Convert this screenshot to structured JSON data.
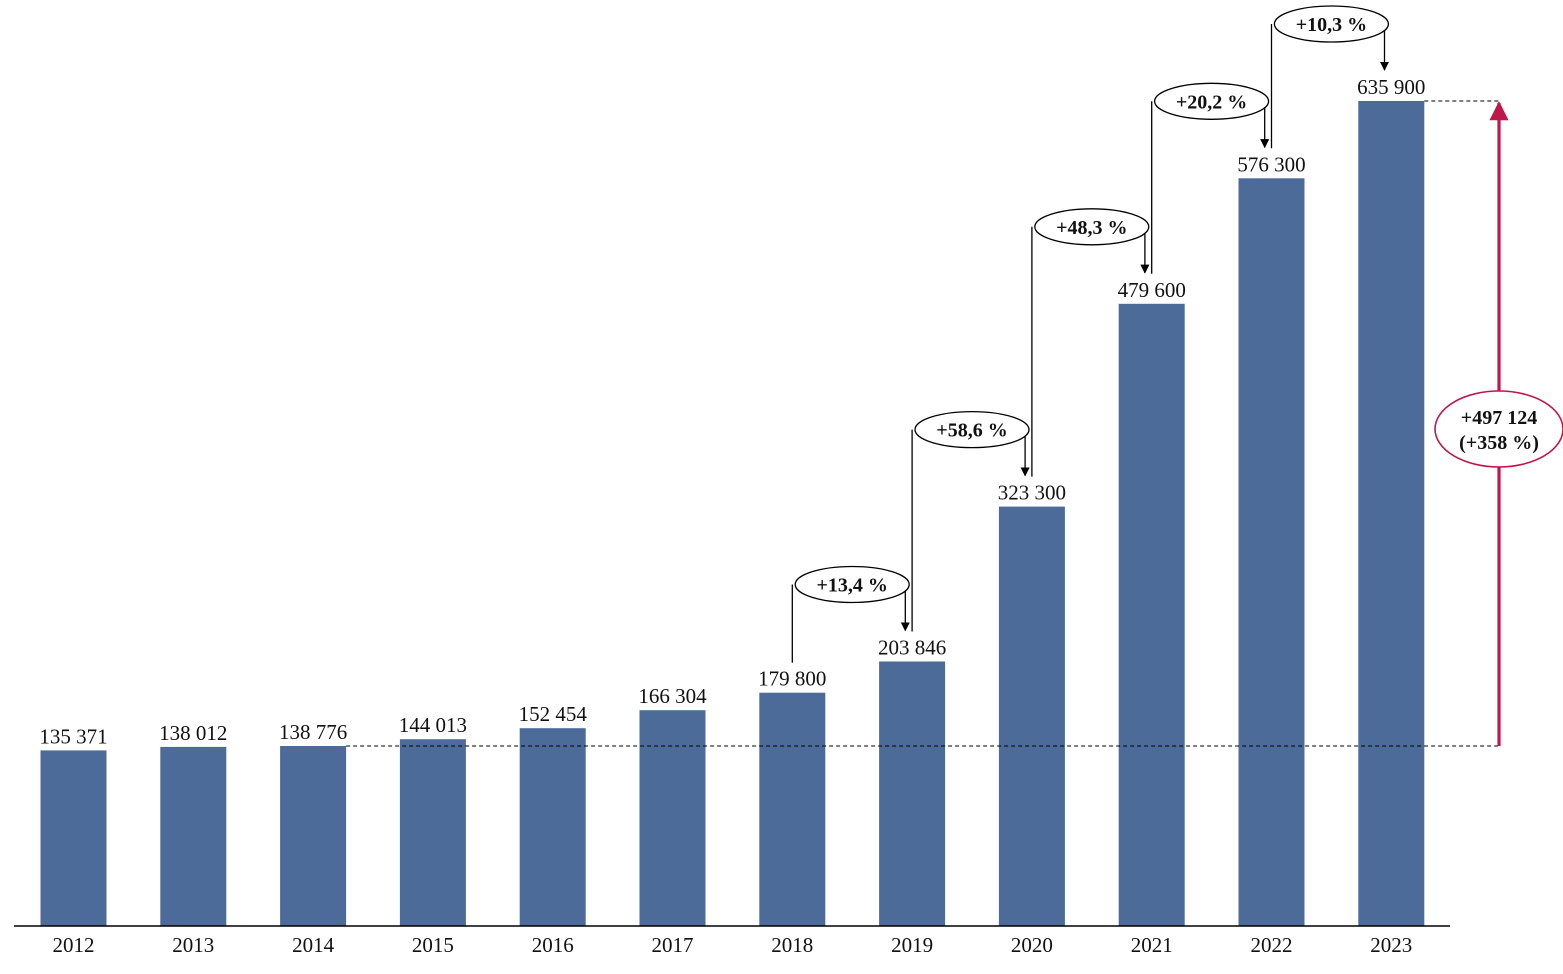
{
  "chart_data": {
    "type": "bar",
    "categories": [
      "2012",
      "2013",
      "2014",
      "2015",
      "2016",
      "2017",
      "2018",
      "2019",
      "2020",
      "2021",
      "2022",
      "2023"
    ],
    "values": [
      135371,
      138012,
      138776,
      144013,
      152454,
      166304,
      179800,
      203846,
      323300,
      479600,
      576300,
      635900
    ],
    "value_labels": [
      "135 371",
      "138 012",
      "138 776",
      "144 013",
      "152 454",
      "166 304",
      "179 800",
      "203 846",
      "323 300",
      "479 600",
      "576 300",
      "635 900"
    ],
    "series_color": "#4c6b99",
    "growth_annotations": [
      {
        "from": "2018",
        "to": "2019",
        "label": "+13,4 %"
      },
      {
        "from": "2019",
        "to": "2020",
        "label": "+58,6 %"
      },
      {
        "from": "2020",
        "to": "2021",
        "label": "+48,3 %"
      },
      {
        "from": "2021",
        "to": "2022",
        "label": "+20,2 %"
      },
      {
        "from": "2022",
        "to": "2023",
        "label": "+10,3 %"
      }
    ],
    "total_change": {
      "from": "2014",
      "to": "2023",
      "line1": "+497 124",
      "line2": "(+358 %)",
      "color": "#c0174a"
    },
    "xlabel": "",
    "ylabel": "",
    "grid": false,
    "y_axis_visible": false
  }
}
